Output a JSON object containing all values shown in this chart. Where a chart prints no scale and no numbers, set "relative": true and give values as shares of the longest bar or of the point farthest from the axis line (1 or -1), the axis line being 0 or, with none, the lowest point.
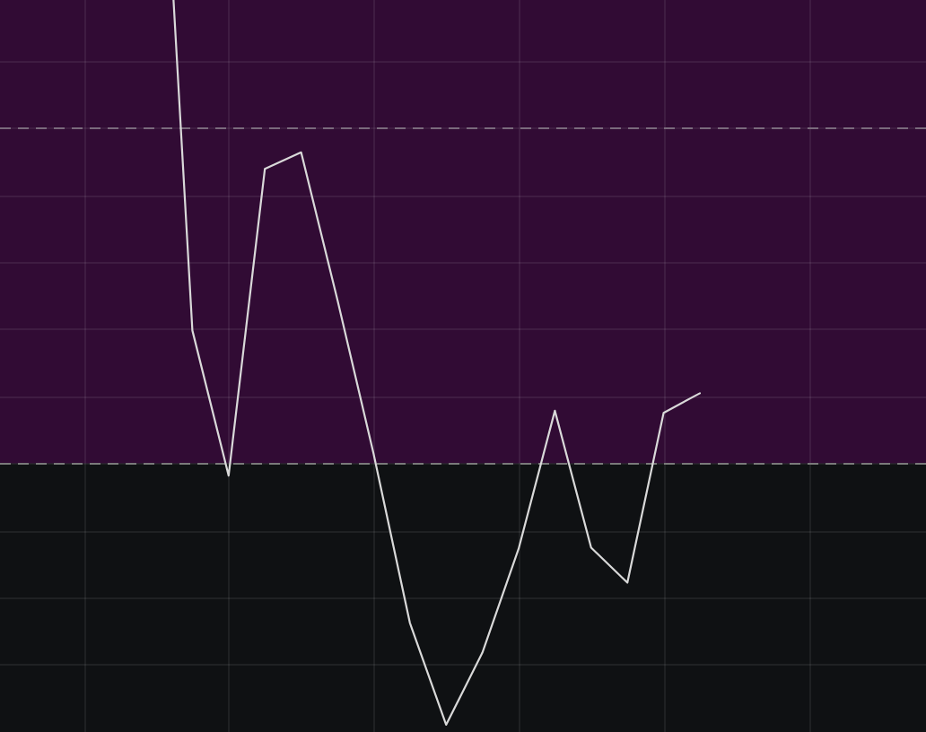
{
  "chart_data": {
    "type": "line",
    "relative": true,
    "categories": [
      null,
      null,
      null,
      null,
      null,
      null,
      null,
      null,
      null,
      null,
      null,
      null,
      null,
      null,
      null,
      null
    ],
    "values": [
      1,
      0.383,
      0.242,
      0.54,
      0.556,
      0.413,
      0.263,
      0.099,
      0,
      0.07,
      0.171,
      0.305,
      0.172,
      0.138,
      0.303,
      0.322
    ],
    "color": "#d9d9d9",
    "bands": [
      {
        "axis": "y",
        "from": 0.254,
        "to": 0.704,
        "color": "#310b34"
      }
    ],
    "ref_lines": [
      {
        "axis": "y",
        "value": 0.58,
        "color": "#7a6a7c",
        "line_style": "dashed"
      },
      {
        "axis": "y",
        "value": 0.254,
        "color": "#7a7a7a",
        "line_style": "dashed"
      }
    ],
    "grid": true
  }
}
